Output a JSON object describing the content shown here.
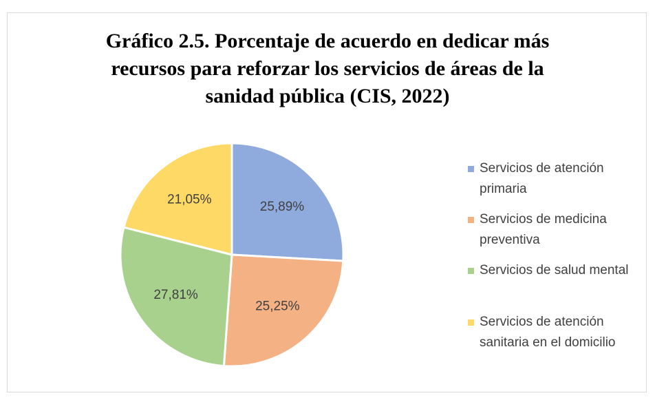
{
  "chart_data": {
    "type": "pie",
    "title": "Gráfico 2.5. Porcentaje de acuerdo en dedicar más recursos para reforzar los servicios de áreas de la sanidad pública (CIS, 2022)",
    "categories": [
      "Servicios de atención primaria",
      "Servicios de medicina preventiva",
      "Servicios de salud mental",
      "Servicios de atención sanitaria en el domicilio"
    ],
    "values": [
      25.89,
      25.25,
      27.81,
      21.05
    ],
    "value_labels": [
      "25,89%",
      "25,25%",
      "27,81%",
      "21,05%"
    ],
    "colors": [
      "#8faadc",
      "#f4b183",
      "#a9d18e",
      "#ffd966"
    ],
    "legend": "right"
  }
}
